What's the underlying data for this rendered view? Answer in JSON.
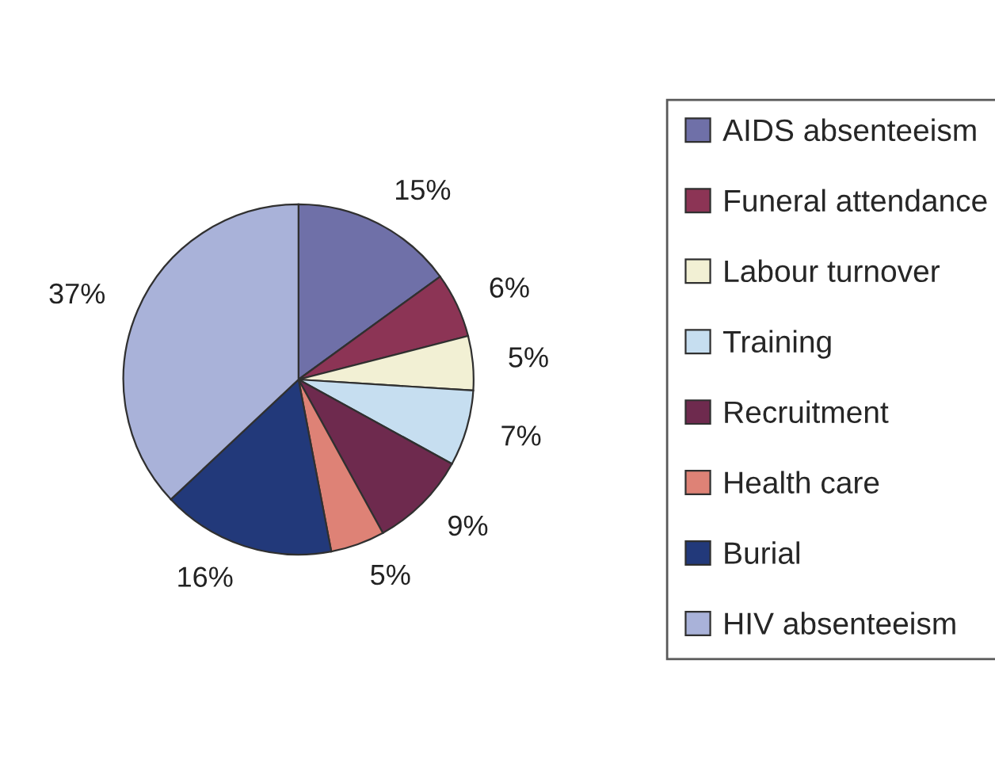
{
  "chart_data": {
    "type": "pie",
    "categories": [
      "AIDS absenteeism",
      "Funeral attendance",
      "Labour turnover",
      "Training",
      "Recruitment",
      "Health care",
      "Burial",
      "HIV absenteeism"
    ],
    "values": [
      15,
      6,
      5,
      7,
      9,
      5,
      16,
      37
    ],
    "value_labels": [
      "15%",
      "6%",
      "5%",
      "7%",
      "9%",
      "5%",
      "16%",
      "37%"
    ],
    "colors": [
      "#6f70a8",
      "#8c3455",
      "#f2f0d4",
      "#c6def0",
      "#6e2a4e",
      "#de8276",
      "#22397a",
      "#a9b2d9"
    ],
    "legend": "right"
  }
}
